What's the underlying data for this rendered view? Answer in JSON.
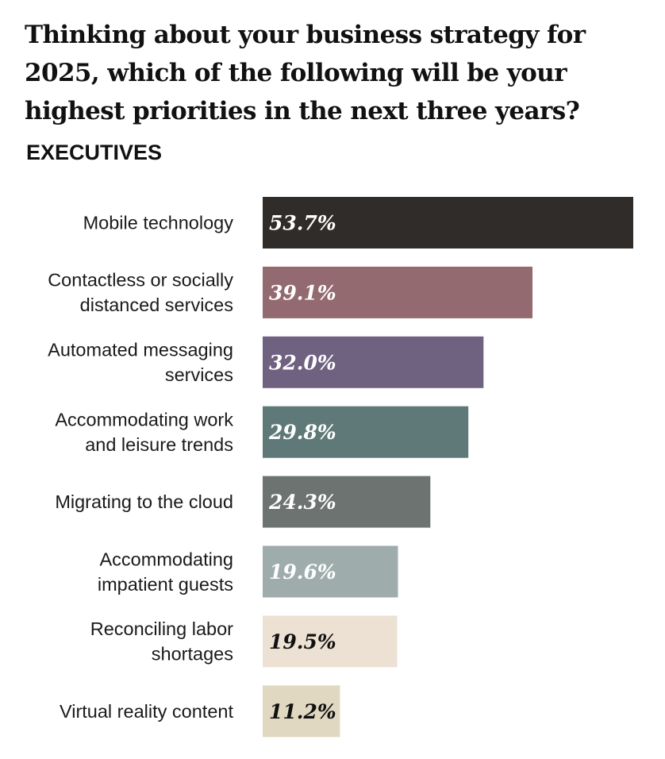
{
  "chart_data": {
    "type": "bar",
    "orientation": "horizontal",
    "title": "Thinking about your business strategy for 2025, which of the following will be your highest priorities in the next three years?",
    "subtitle": "EXECUTIVES",
    "categories": [
      "Mobile technology",
      "Contactless or socially distanced services",
      "Automated messaging services",
      "Accommodating work and leisure trends",
      "Migrating to the cloud",
      "Accommodating impatient guests",
      "Reconciling labor shortages",
      "Virtual reality content"
    ],
    "category_lines": [
      [
        "Mobile technology"
      ],
      [
        "Contactless or socially",
        "distanced services"
      ],
      [
        "Automated messaging",
        "services"
      ],
      [
        "Accommodating work",
        "and leisure trends"
      ],
      [
        "Migrating to the cloud"
      ],
      [
        "Accommodating",
        "impatient guests"
      ],
      [
        "Reconciling labor",
        "shortages"
      ],
      [
        "Virtual reality content"
      ]
    ],
    "values": [
      53.7,
      39.1,
      32.0,
      29.8,
      24.3,
      19.6,
      19.5,
      11.2
    ],
    "value_labels": [
      "53.7%",
      "39.1%",
      "32.0%",
      "29.8%",
      "24.3%",
      "19.6%",
      "19.5%",
      "11.2%"
    ],
    "unit": "%",
    "xlim": [
      0,
      53.7
    ],
    "colors": [
      "#302c29",
      "#936a6f",
      "#6f6180",
      "#5e7977",
      "#6d7371",
      "#9eadab",
      "#ede1d4",
      "#e1d8c1"
    ],
    "value_label_colors": [
      "#ffffff",
      "#ffffff",
      "#ffffff",
      "#ffffff",
      "#ffffff",
      "#ffffff",
      "#111111",
      "#111111"
    ],
    "axes_visible": false,
    "grid": false,
    "legend": "none"
  }
}
